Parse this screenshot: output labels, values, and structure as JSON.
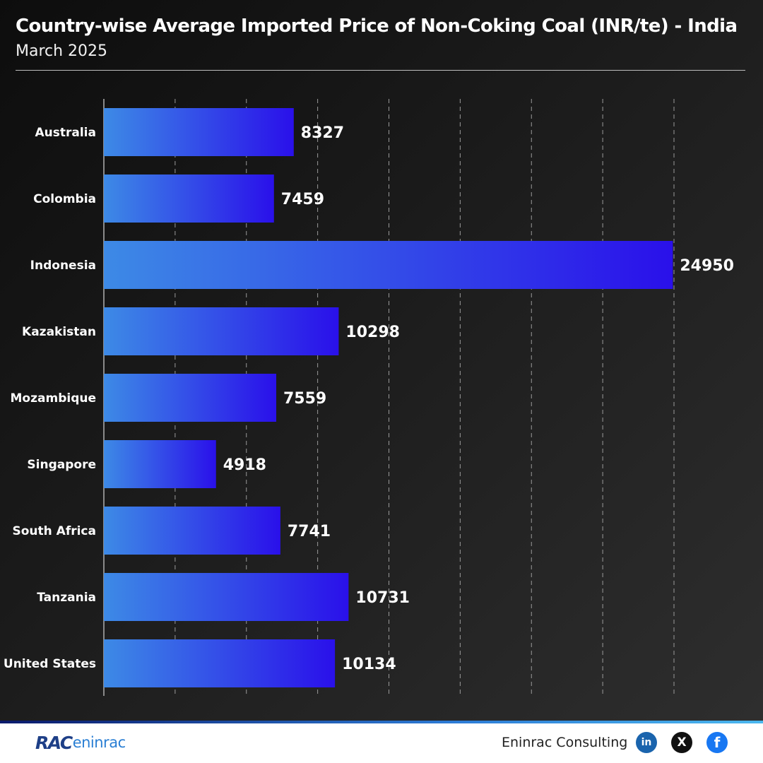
{
  "header": {
    "title": "Country-wise Average Imported Price of Non-Coking Coal (INR/te) - India",
    "subtitle": "March 2025"
  },
  "chart_data": {
    "type": "bar",
    "orientation": "horizontal",
    "title": "Country-wise Average Imported Price of Non-Coking Coal (INR/te) - India",
    "subtitle": "March 2025",
    "categories": [
      "Australia",
      "Colombia",
      "Indonesia",
      "Kazakistan",
      "Mozambique",
      "Singapore",
      "South Africa",
      "Tanzania",
      "United States"
    ],
    "values": [
      8327,
      7459,
      24950,
      10298,
      7559,
      4918,
      7741,
      10731,
      10134
    ],
    "flags": [
      "australia-flag-icon",
      "colombia-flag-icon",
      "indonesia-flag-icon",
      "kazakhstan-flag-icon",
      "mozambique-flag-icon",
      "singapore-flag-icon",
      "south-africa-flag-icon",
      "tanzania-flag-icon",
      "united-states-flag-icon"
    ],
    "xlim": [
      0,
      25000
    ],
    "grid": true,
    "bar_gradient": [
      "#3d8ae6",
      "#2a10ea"
    ],
    "value_label_color": "#ffffff"
  },
  "footer": {
    "logo_prefix": "RAC",
    "logo_brand": "eninrac",
    "company": "Eninrac Consulting",
    "social": {
      "linkedin": "in",
      "x": "X",
      "facebook": "f"
    }
  }
}
